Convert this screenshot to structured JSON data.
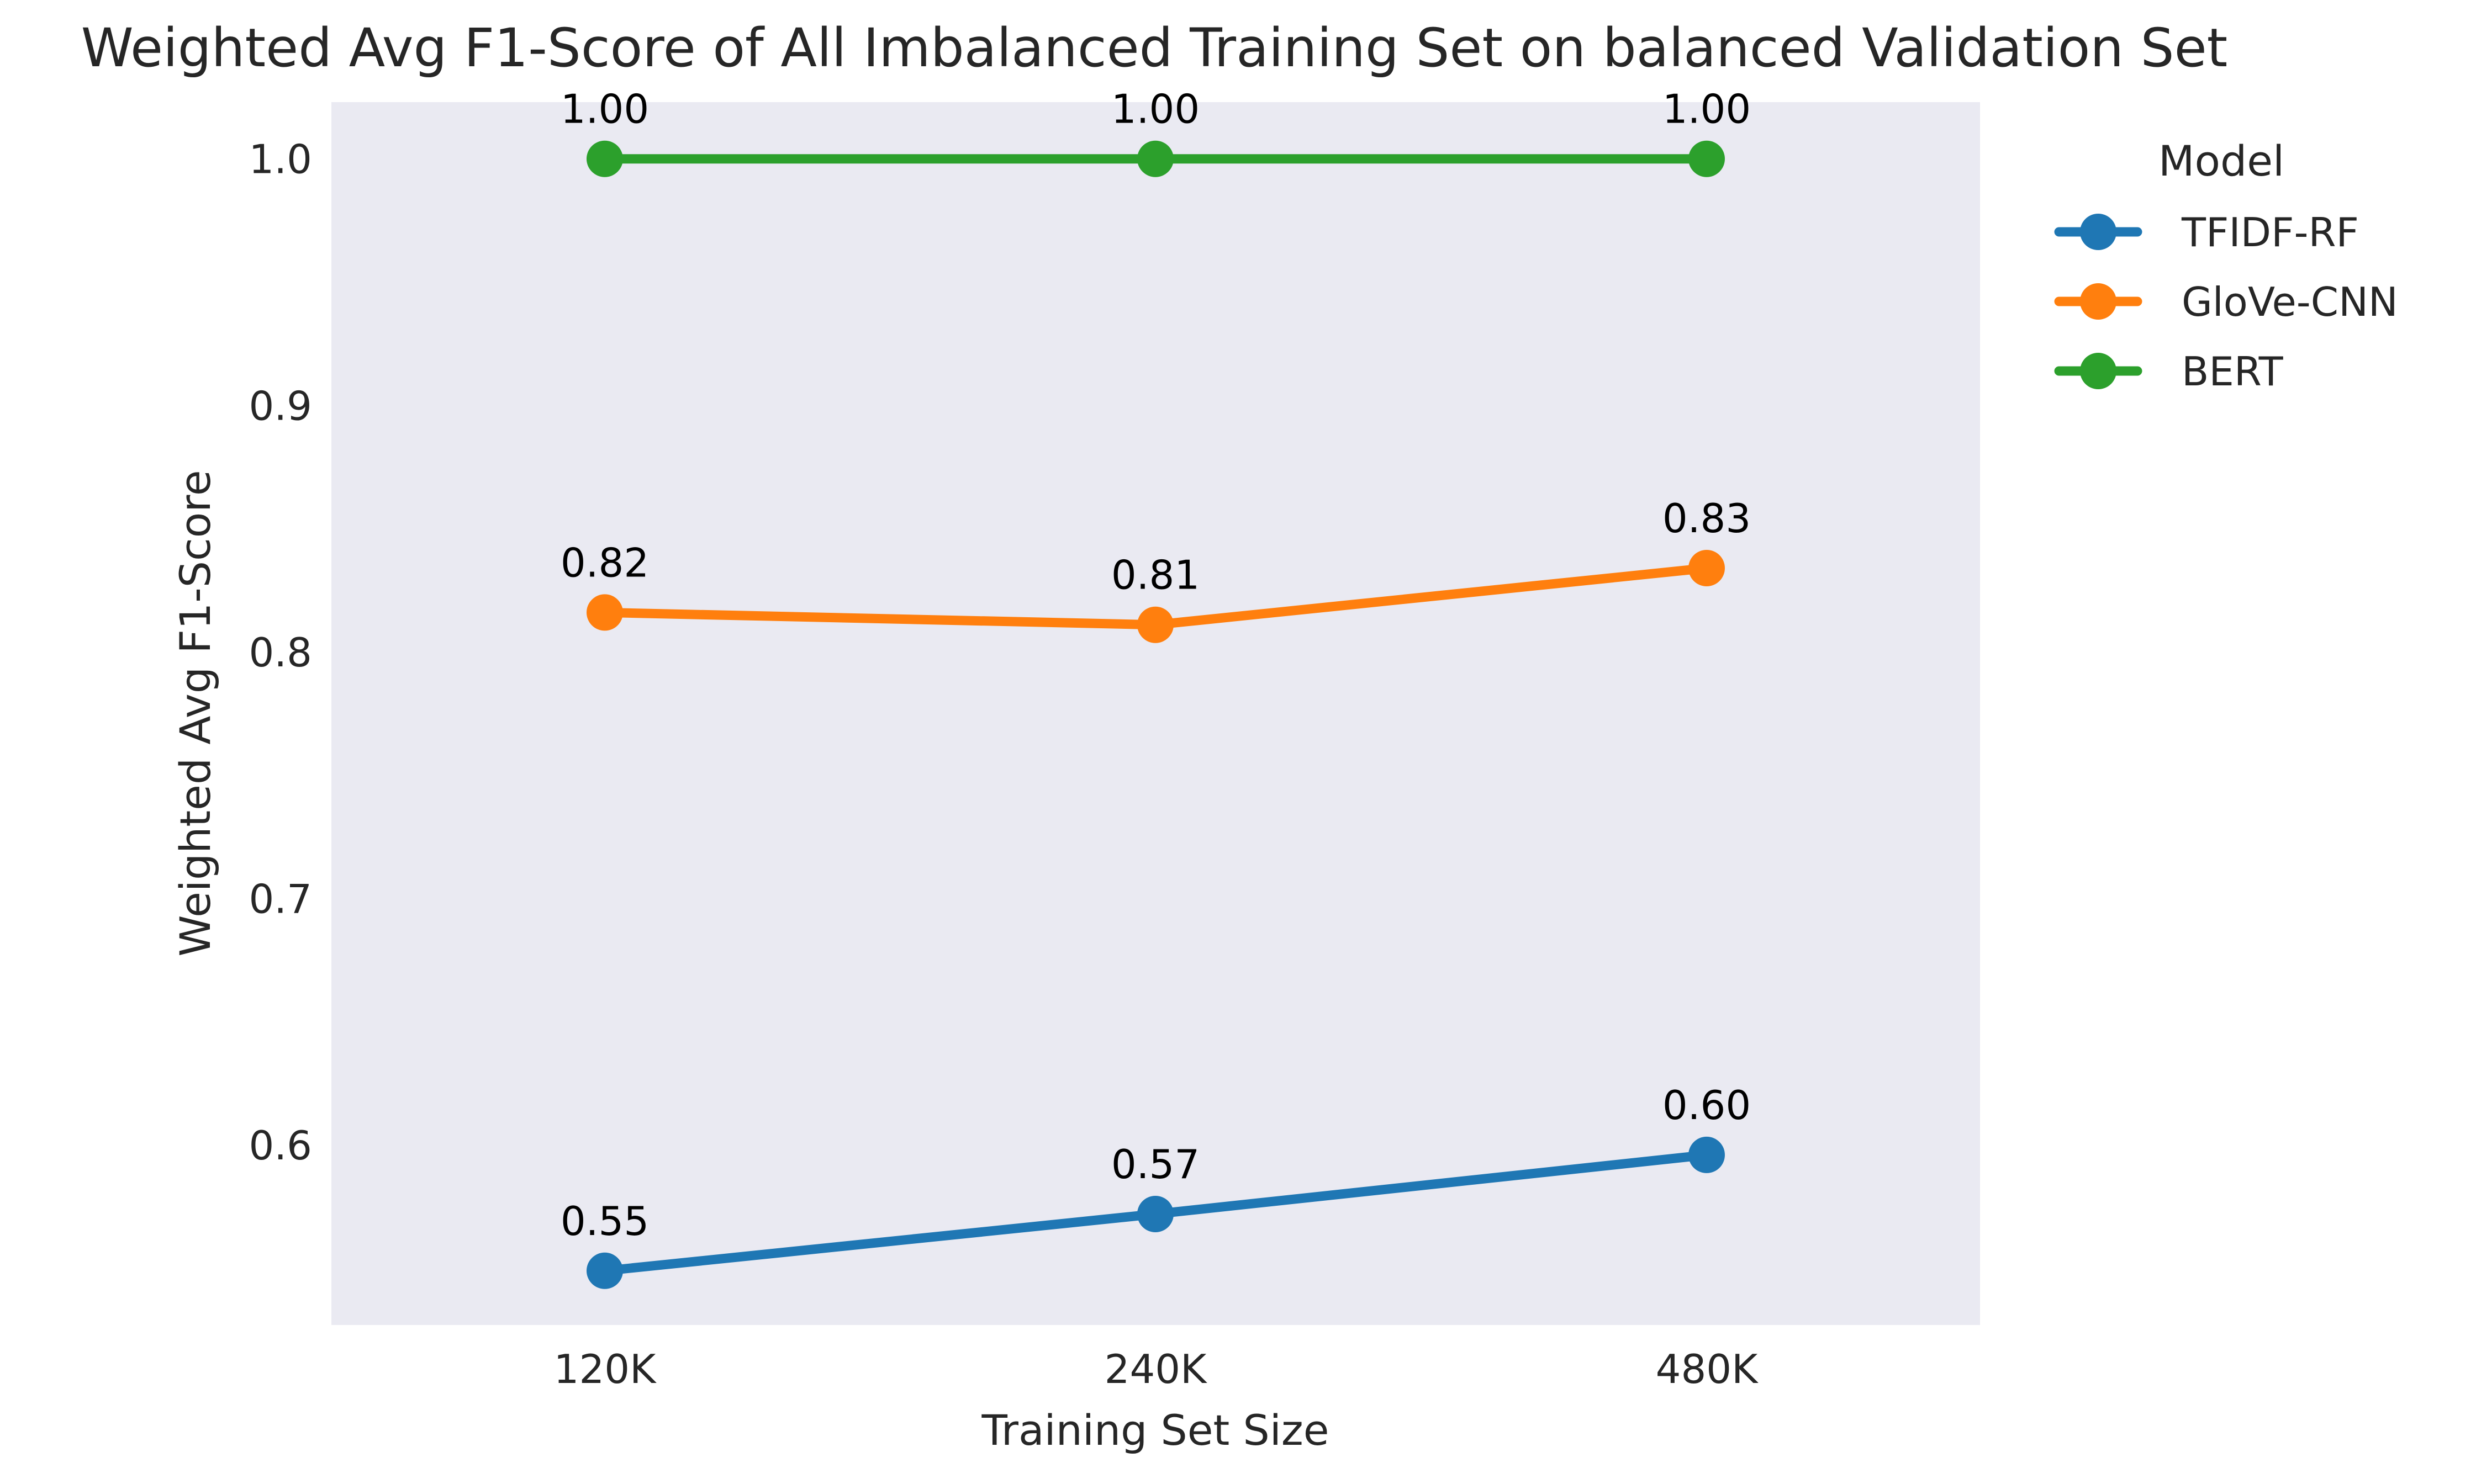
{
  "chart_data": {
    "type": "line",
    "title": "Weighted Avg F1-Score of All Imbalanced Training Set on balanced Validation Set",
    "xlabel": "Training Set Size",
    "ylabel": "Weighted Avg F1-Score",
    "categories": [
      "120K",
      "240K",
      "480K"
    ],
    "y_ticks": [
      0.6,
      0.7,
      0.8,
      0.9,
      1.0
    ],
    "y_tick_labels": [
      "0.6",
      "0.7",
      "0.8",
      "0.9",
      "1.0"
    ],
    "ylim": [
      0.527,
      1.023
    ],
    "grid": false,
    "background": "#eaeaf2",
    "legend": {
      "title": "Model",
      "placement": "outside upper right"
    },
    "series": [
      {
        "name": "TFIDF-RF",
        "color": "#1f77b4",
        "values": [
          0.549,
          0.572,
          0.596
        ],
        "labels": [
          "0.55",
          "0.57",
          "0.60"
        ]
      },
      {
        "name": "GloVe-CNN",
        "color": "#ff7f0e",
        "values": [
          0.816,
          0.811,
          0.834
        ],
        "labels": [
          "0.82",
          "0.81",
          "0.83"
        ]
      },
      {
        "name": "BERT",
        "color": "#2ca02c",
        "values": [
          1.0,
          1.0,
          1.0
        ],
        "labels": [
          "1.00",
          "1.00",
          "1.00"
        ]
      }
    ]
  }
}
